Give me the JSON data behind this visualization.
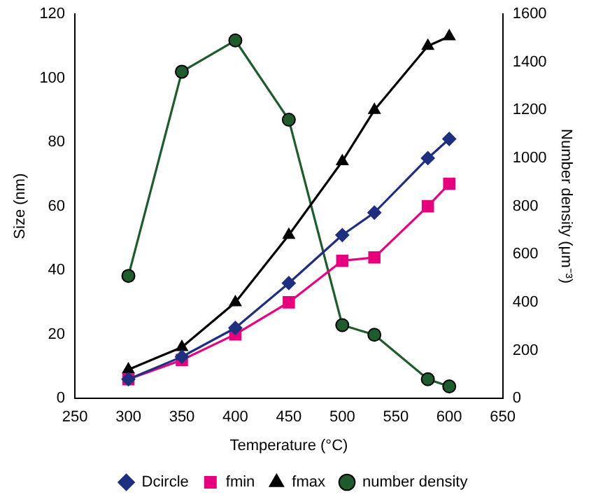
{
  "chart_data": {
    "type": "line",
    "xlabel": "Temperature (°C)",
    "ylabel": "Size (nm)",
    "y2label": "Number density (μm⁻³)",
    "x": [
      300,
      350,
      400,
      450,
      500,
      530,
      580,
      600
    ],
    "xlim": [
      250,
      650
    ],
    "xticks": [
      250,
      300,
      350,
      400,
      450,
      500,
      550,
      600,
      650
    ],
    "ylim": [
      0,
      120
    ],
    "yticks": [
      0,
      20,
      40,
      60,
      80,
      100,
      120
    ],
    "y2lim": [
      0,
      1600
    ],
    "y2ticks": [
      0,
      200,
      400,
      600,
      800,
      1000,
      1200,
      1400,
      1600
    ],
    "grid": false,
    "legend": "bottom",
    "series": [
      {
        "name": "Dcircle",
        "color": "#1f2f7f",
        "marker": "diamond",
        "values": [
          6,
          13,
          22,
          36,
          51,
          58,
          75,
          81
        ]
      },
      {
        "name": "fmin",
        "color": "#e6007e",
        "marker": "square",
        "values": [
          6,
          12,
          20,
          30,
          43,
          44,
          60,
          67
        ]
      },
      {
        "name": "fmax",
        "color": "#000000",
        "marker": "triangle",
        "values": [
          9,
          16,
          30,
          51,
          74,
          90,
          110,
          113
        ]
      },
      {
        "name": "number density",
        "color": "#1e5c2e",
        "marker": "circle",
        "axis": "y2",
        "values": [
          510,
          1360,
          1490,
          1160,
          305,
          265,
          80,
          50
        ]
      }
    ]
  }
}
